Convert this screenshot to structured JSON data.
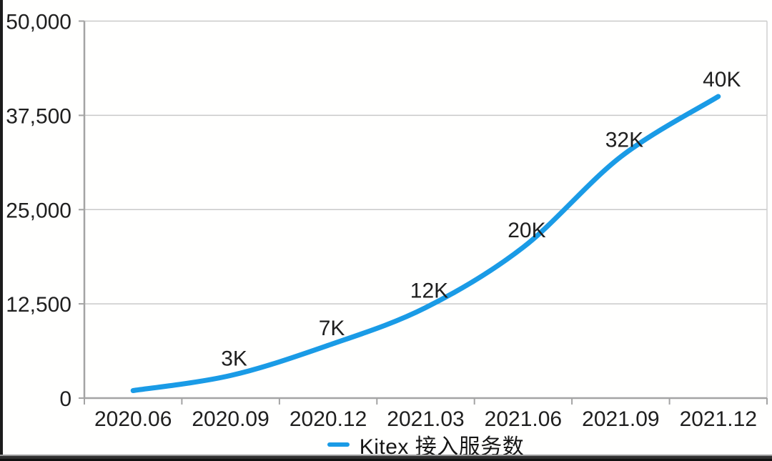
{
  "chart_data": {
    "type": "line",
    "title": "",
    "xlabel": "",
    "ylabel": "",
    "categories": [
      "2020.06",
      "2020.09",
      "2020.12",
      "2021.03",
      "2021.06",
      "2021.09",
      "2021.12"
    ],
    "series": [
      {
        "name": "Kitex 接入服务数",
        "values": [
          1000,
          3000,
          7000,
          12000,
          20000,
          32000,
          40000
        ],
        "point_labels": [
          "",
          "3K",
          "7K",
          "12K",
          "20K",
          "32K",
          "40K"
        ],
        "color": "#1a9be6"
      }
    ],
    "ylim": [
      0,
      50000
    ],
    "yticks": [
      0,
      12500,
      25000,
      37500,
      50000
    ],
    "ytick_labels": [
      "0",
      "12,500",
      "25,000",
      "37,500",
      "50,000"
    ],
    "grid": true,
    "legend_position": "bottom"
  },
  "colors": {
    "line": "#1a9be6",
    "gridline": "#c9c9c9",
    "axis": "#a4a4a4",
    "plot_right_border": "#cfcfcf",
    "text": "#1f1f1f",
    "frame_edge": "#1c1c1c"
  }
}
